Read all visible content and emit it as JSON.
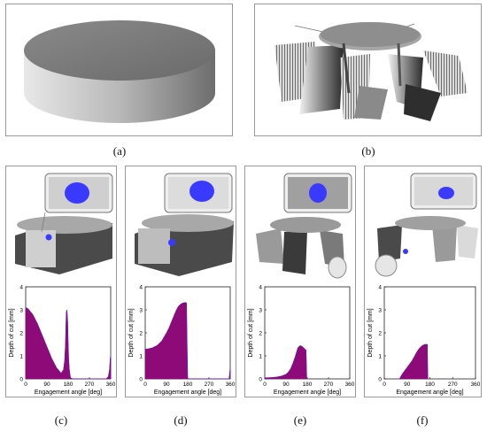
{
  "captions": {
    "a": "(a)",
    "b": "(b)",
    "c": "(c)",
    "d": "(d)",
    "e": "(e)",
    "f": "(f)"
  },
  "chart_data": [
    {
      "panel": "c",
      "type": "area",
      "xlabel": "Engagement angle [deg]",
      "ylabel": "Depth of cut [mm]",
      "xlim": [
        0,
        360
      ],
      "ylim": [
        0,
        4
      ],
      "xticks": [
        0,
        90,
        180,
        270,
        360
      ],
      "yticks": [
        0,
        1,
        2,
        3,
        4
      ],
      "x": [
        0,
        10,
        30,
        50,
        70,
        90,
        110,
        130,
        150,
        160,
        165,
        168,
        170,
        172,
        175,
        178,
        180,
        182,
        185,
        190,
        200,
        340,
        350,
        355,
        358,
        360
      ],
      "values": [
        3.1,
        3.05,
        2.8,
        2.4,
        1.9,
        1.4,
        0.9,
        0.5,
        0.25,
        0.4,
        0.8,
        1.4,
        2.2,
        2.9,
        3.0,
        2.5,
        1.6,
        0.9,
        0.4,
        0.05,
        0,
        0,
        0.1,
        0.4,
        0.9,
        1.0
      ]
    },
    {
      "panel": "d",
      "type": "area",
      "xlabel": "Engagement angle [deg]",
      "ylabel": "Depth of cut [mm]",
      "xlim": [
        0,
        360
      ],
      "ylim": [
        0,
        4
      ],
      "xticks": [
        0,
        90,
        180,
        270,
        360
      ],
      "yticks": [
        0,
        1,
        2,
        3,
        4
      ],
      "x": [
        0,
        10,
        30,
        50,
        70,
        90,
        100,
        110,
        120,
        130,
        140,
        150,
        160,
        170,
        175,
        178,
        180,
        355,
        358,
        360
      ],
      "values": [
        1.3,
        1.3,
        1.35,
        1.45,
        1.65,
        2.0,
        2.2,
        2.45,
        2.7,
        2.95,
        3.15,
        3.25,
        3.3,
        3.32,
        3.3,
        1.2,
        0,
        0,
        0.3,
        0.5
      ]
    },
    {
      "panel": "e",
      "type": "area",
      "xlabel": "Engagement angle [deg]",
      "ylabel": "Depth of cut [mm]",
      "xlim": [
        0,
        360
      ],
      "ylim": [
        0,
        4
      ],
      "xticks": [
        0,
        90,
        180,
        270,
        360
      ],
      "yticks": [
        0,
        1,
        2,
        3,
        4
      ],
      "x": [
        0,
        10,
        30,
        50,
        70,
        90,
        100,
        110,
        120,
        130,
        140,
        150,
        160,
        170,
        175,
        178
      ],
      "values": [
        0.05,
        0.05,
        0.06,
        0.08,
        0.12,
        0.2,
        0.3,
        0.45,
        0.7,
        1.0,
        1.35,
        1.45,
        1.4,
        1.3,
        1.25,
        0
      ]
    },
    {
      "panel": "f",
      "type": "area",
      "xlabel": "Engagement angle [deg]",
      "ylabel": "Depth of cut [mm]",
      "xlim": [
        0,
        360
      ],
      "ylim": [
        0,
        4
      ],
      "xticks": [
        0,
        90,
        180,
        270,
        360
      ],
      "yticks": [
        0,
        1,
        2,
        3,
        4
      ],
      "x": [
        60,
        70,
        80,
        90,
        100,
        110,
        120,
        130,
        140,
        150,
        160,
        170,
        172
      ],
      "values": [
        0,
        0.2,
        0.35,
        0.5,
        0.65,
        0.8,
        1.0,
        1.2,
        1.35,
        1.45,
        1.5,
        1.5,
        0
      ]
    }
  ],
  "colors": {
    "fill": "#8e0a78",
    "edge": "#2a2aff",
    "blob": "#3a3aff"
  }
}
